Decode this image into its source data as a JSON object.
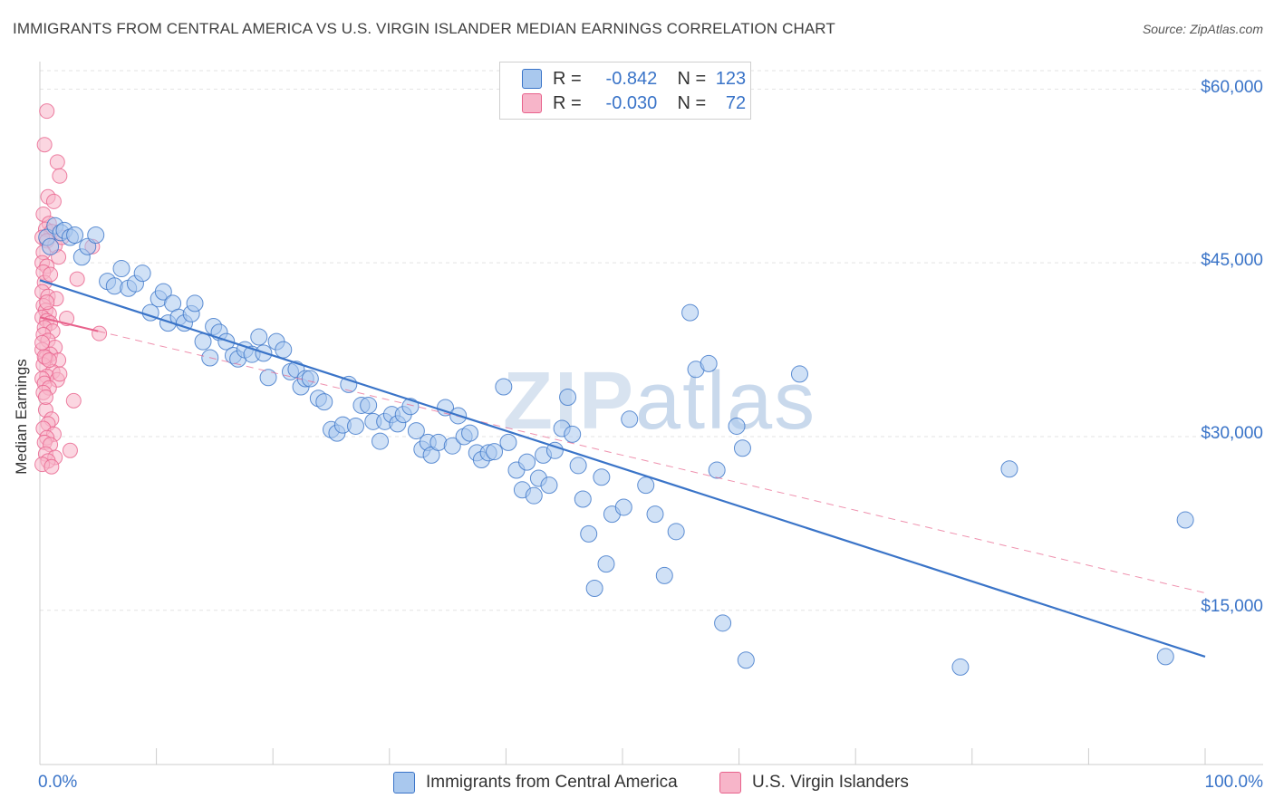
{
  "title": "IMMIGRANTS FROM CENTRAL AMERICA VS U.S. VIRGIN ISLANDER MEDIAN EARNINGS CORRELATION CHART",
  "source": "Source: ZipAtlas.com",
  "watermark": {
    "zip": "ZIP",
    "atlas": "atlas"
  },
  "colors": {
    "blue": "#3a74c8",
    "blue_fill": "#a9c8ee",
    "pink": "#e8628c",
    "pink_fill": "#f7b5c9",
    "grid": "#e3e3e3"
  },
  "legend": {
    "rows": [
      {
        "r_label": "R =",
        "r_value": "-0.842",
        "n_label": "N =",
        "n_value": "123"
      },
      {
        "r_label": "R =",
        "r_value": "-0.030",
        "n_label": "N =",
        "n_value": "72"
      }
    ]
  },
  "bottom_legend": {
    "blue_label": "Immigrants from Central America",
    "pink_label": "U.S. Virgin Islanders"
  },
  "chart_data": {
    "type": "scatter",
    "title": "IMMIGRANTS FROM CENTRAL AMERICA VS U.S. VIRGIN ISLANDER MEDIAN EARNINGS CORRELATION CHART",
    "xlabel": "",
    "ylabel": "Median Earnings",
    "xlim": [
      0,
      100
    ],
    "ylim": [
      2000,
      63000
    ],
    "y_ticks": [
      {
        "value": 15000,
        "label": "$15,000"
      },
      {
        "value": 30000,
        "label": "$30,000"
      },
      {
        "value": 45000,
        "label": "$45,000"
      },
      {
        "value": 60000,
        "label": "$60,000"
      }
    ],
    "x_tick_labels": {
      "left": "0.0%",
      "right": "100.0%"
    },
    "series": [
      {
        "name": "Immigrants from Central America",
        "color": "#3a74c8",
        "trend": {
          "x0": 0,
          "y0": 43500,
          "x1": 100,
          "y1": 11000,
          "style": "solid"
        },
        "points": [
          [
            0.6,
            47200
          ],
          [
            0.9,
            46400
          ],
          [
            1.3,
            48200
          ],
          [
            1.8,
            47600
          ],
          [
            2.1,
            47800
          ],
          [
            2.6,
            47200
          ],
          [
            3.0,
            47400
          ],
          [
            3.6,
            45500
          ],
          [
            4.1,
            46400
          ],
          [
            4.8,
            47400
          ],
          [
            5.8,
            43400
          ],
          [
            6.4,
            43000
          ],
          [
            7.0,
            44500
          ],
          [
            7.6,
            42800
          ],
          [
            8.2,
            43200
          ],
          [
            8.8,
            44100
          ],
          [
            9.5,
            40700
          ],
          [
            10.2,
            41900
          ],
          [
            10.6,
            42500
          ],
          [
            11.0,
            39800
          ],
          [
            11.4,
            41500
          ],
          [
            11.9,
            40300
          ],
          [
            12.4,
            39800
          ],
          [
            13.0,
            40600
          ],
          [
            13.3,
            41500
          ],
          [
            14.0,
            38200
          ],
          [
            14.6,
            36800
          ],
          [
            14.9,
            39500
          ],
          [
            15.4,
            39000
          ],
          [
            16.0,
            38200
          ],
          [
            16.6,
            37000
          ],
          [
            17.0,
            36700
          ],
          [
            17.6,
            37500
          ],
          [
            18.2,
            37100
          ],
          [
            18.8,
            38600
          ],
          [
            19.2,
            37200
          ],
          [
            19.6,
            35100
          ],
          [
            20.3,
            38200
          ],
          [
            20.9,
            37500
          ],
          [
            21.5,
            35600
          ],
          [
            22.0,
            35800
          ],
          [
            22.4,
            34300
          ],
          [
            22.8,
            35000
          ],
          [
            23.2,
            35000
          ],
          [
            23.9,
            33300
          ],
          [
            24.4,
            33000
          ],
          [
            25.0,
            30600
          ],
          [
            25.5,
            30300
          ],
          [
            26.0,
            31000
          ],
          [
            26.5,
            34500
          ],
          [
            27.1,
            30900
          ],
          [
            27.6,
            32700
          ],
          [
            28.2,
            32700
          ],
          [
            28.6,
            31300
          ],
          [
            29.2,
            29600
          ],
          [
            29.6,
            31300
          ],
          [
            30.2,
            31900
          ],
          [
            30.7,
            31100
          ],
          [
            31.2,
            31900
          ],
          [
            31.8,
            32600
          ],
          [
            32.3,
            30500
          ],
          [
            32.8,
            28900
          ],
          [
            33.3,
            29500
          ],
          [
            33.6,
            28400
          ],
          [
            34.2,
            29500
          ],
          [
            34.8,
            32500
          ],
          [
            35.4,
            29200
          ],
          [
            35.9,
            31800
          ],
          [
            36.4,
            30000
          ],
          [
            36.9,
            30300
          ],
          [
            37.5,
            28600
          ],
          [
            37.9,
            28000
          ],
          [
            38.5,
            28600
          ],
          [
            39.0,
            28700
          ],
          [
            39.8,
            34300
          ],
          [
            40.2,
            29500
          ],
          [
            40.9,
            27100
          ],
          [
            41.4,
            25400
          ],
          [
            41.8,
            27800
          ],
          [
            42.4,
            24900
          ],
          [
            42.8,
            26400
          ],
          [
            43.2,
            28400
          ],
          [
            43.7,
            25800
          ],
          [
            44.2,
            28800
          ],
          [
            44.8,
            30700
          ],
          [
            45.3,
            33400
          ],
          [
            45.7,
            30200
          ],
          [
            46.2,
            27500
          ],
          [
            46.6,
            24600
          ],
          [
            47.1,
            21600
          ],
          [
            47.6,
            16900
          ],
          [
            48.2,
            26500
          ],
          [
            48.6,
            19000
          ],
          [
            49.1,
            23300
          ],
          [
            50.1,
            23900
          ],
          [
            50.6,
            31500
          ],
          [
            52.0,
            25800
          ],
          [
            52.8,
            23300
          ],
          [
            53.6,
            18000
          ],
          [
            54.6,
            21800
          ],
          [
            55.8,
            40700
          ],
          [
            56.3,
            35800
          ],
          [
            57.4,
            36300
          ],
          [
            58.1,
            27100
          ],
          [
            58.6,
            13900
          ],
          [
            59.8,
            30900
          ],
          [
            60.3,
            29000
          ],
          [
            60.6,
            10700
          ],
          [
            65.2,
            35400
          ],
          [
            79.0,
            10100
          ],
          [
            83.2,
            27200
          ],
          [
            96.6,
            11000
          ],
          [
            98.3,
            22800
          ]
        ]
      },
      {
        "name": "U.S. Virgin Islanders",
        "color": "#e8628c",
        "trend": {
          "x0": 0,
          "y0": 40300,
          "x1": 5,
          "y1": 39100,
          "style": "solid",
          "ext_x1": 100,
          "ext_y1": 16500
        },
        "points": [
          [
            0.6,
            58100
          ],
          [
            0.4,
            55200
          ],
          [
            1.5,
            53700
          ],
          [
            1.7,
            52500
          ],
          [
            0.7,
            50700
          ],
          [
            1.2,
            50300
          ],
          [
            0.3,
            49200
          ],
          [
            0.8,
            48400
          ],
          [
            0.5,
            47900
          ],
          [
            1.0,
            47700
          ],
          [
            0.2,
            47200
          ],
          [
            0.6,
            46900
          ],
          [
            1.3,
            46500
          ],
          [
            4.5,
            46400
          ],
          [
            0.3,
            45900
          ],
          [
            1.6,
            45500
          ],
          [
            0.2,
            45000
          ],
          [
            0.6,
            44700
          ],
          [
            0.3,
            44200
          ],
          [
            3.2,
            43600
          ],
          [
            0.4,
            43300
          ],
          [
            0.2,
            42500
          ],
          [
            0.7,
            42100
          ],
          [
            1.4,
            41900
          ],
          [
            0.3,
            41300
          ],
          [
            0.5,
            40900
          ],
          [
            0.8,
            40600
          ],
          [
            0.2,
            40300
          ],
          [
            0.6,
            40000
          ],
          [
            2.3,
            40200
          ],
          [
            0.9,
            39800
          ],
          [
            0.4,
            39400
          ],
          [
            1.1,
            39100
          ],
          [
            0.3,
            38800
          ],
          [
            5.1,
            38900
          ],
          [
            0.7,
            38300
          ],
          [
            1.3,
            37700
          ],
          [
            0.2,
            37500
          ],
          [
            0.9,
            37100
          ],
          [
            0.5,
            36800
          ],
          [
            1.6,
            36600
          ],
          [
            0.3,
            36200
          ],
          [
            1.1,
            35600
          ],
          [
            0.6,
            35200
          ],
          [
            0.2,
            35000
          ],
          [
            0.4,
            34600
          ],
          [
            1.5,
            34900
          ],
          [
            0.8,
            34200
          ],
          [
            0.3,
            33800
          ],
          [
            2.9,
            33100
          ],
          [
            0.5,
            32300
          ],
          [
            1.0,
            31500
          ],
          [
            0.7,
            31100
          ],
          [
            0.3,
            30700
          ],
          [
            1.2,
            30200
          ],
          [
            0.6,
            29900
          ],
          [
            0.4,
            29500
          ],
          [
            0.9,
            29300
          ],
          [
            2.6,
            28800
          ],
          [
            0.5,
            28500
          ],
          [
            1.3,
            28200
          ],
          [
            0.7,
            27900
          ],
          [
            0.2,
            27600
          ],
          [
            1.0,
            27400
          ],
          [
            0.4,
            36900
          ],
          [
            0.8,
            36600
          ],
          [
            1.7,
            35400
          ],
          [
            0.5,
            33400
          ],
          [
            0.2,
            38100
          ],
          [
            0.6,
            41600
          ],
          [
            0.9,
            44000
          ],
          [
            1.9,
            47200
          ]
        ]
      }
    ]
  }
}
